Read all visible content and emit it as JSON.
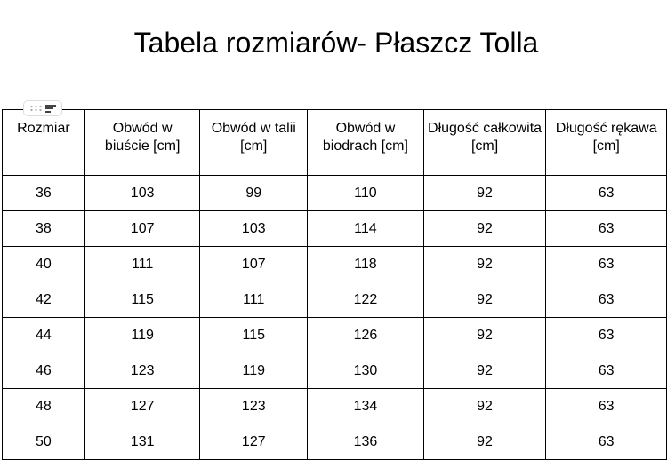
{
  "title": "Tabela rozmiarów- Płaszcz Tolla",
  "table": {
    "headers": [
      "Rozmiar",
      "Obwód w biuście [cm]",
      "Obwód w talii [cm]",
      "Obwód w biodrach [cm]",
      "Długość całkowita [cm]",
      "Długość rękawa [cm]"
    ],
    "rows": [
      [
        "36",
        "103",
        "99",
        "110",
        "92",
        "63"
      ],
      [
        "38",
        "107",
        "103",
        "114",
        "92",
        "63"
      ],
      [
        "40",
        "111",
        "107",
        "118",
        "92",
        "63"
      ],
      [
        "42",
        "115",
        "111",
        "122",
        "92",
        "63"
      ],
      [
        "44",
        "119",
        "115",
        "126",
        "92",
        "63"
      ],
      [
        "46",
        "123",
        "119",
        "130",
        "92",
        "63"
      ],
      [
        "48",
        "127",
        "123",
        "134",
        "92",
        "63"
      ],
      [
        "50",
        "131",
        "127",
        "136",
        "92",
        "63"
      ]
    ]
  }
}
